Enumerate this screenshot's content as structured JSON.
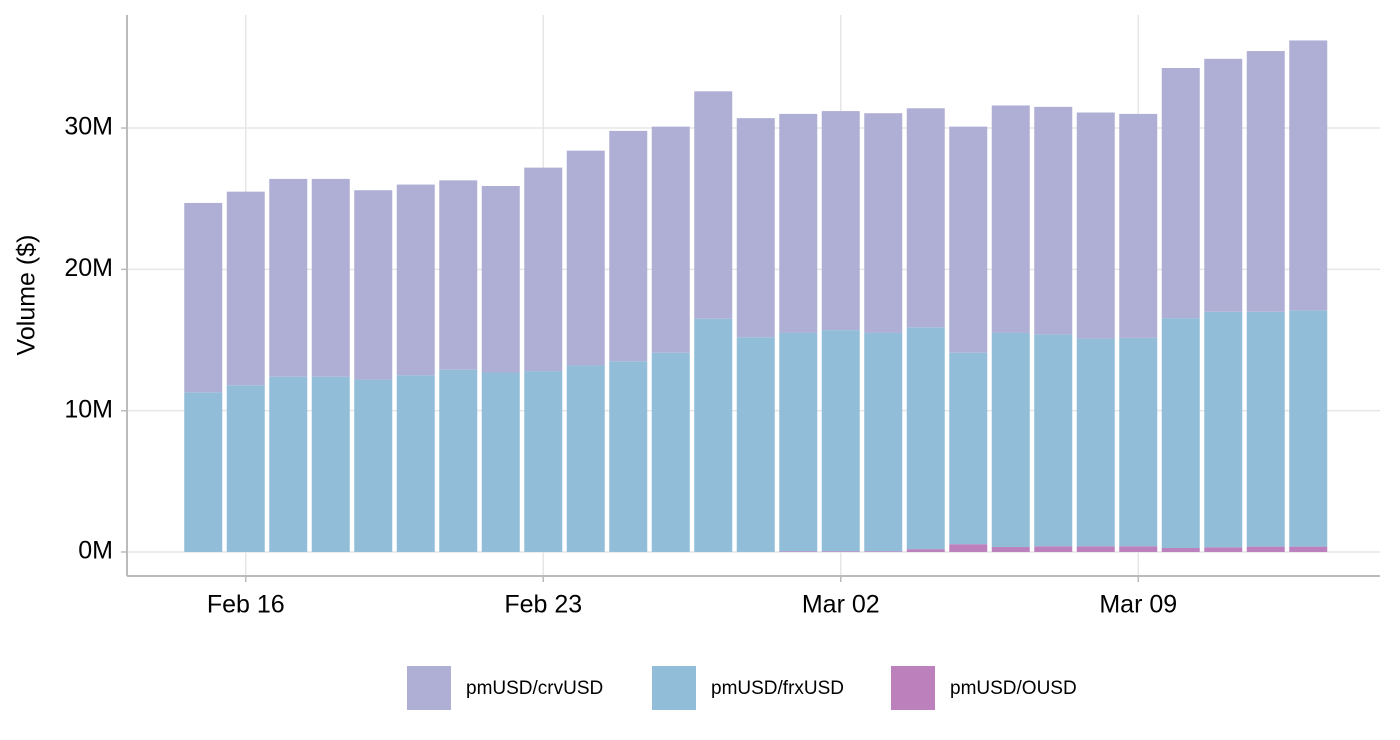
{
  "chart_data": {
    "type": "stacked_bar",
    "y_label": "Volume ($)",
    "categories": [
      null,
      "Feb 16",
      null,
      null,
      null,
      null,
      null,
      null,
      "Feb 23",
      null,
      null,
      null,
      null,
      null,
      null,
      "Mar 02",
      null,
      null,
      null,
      null,
      null,
      null,
      "Mar 09",
      null,
      null,
      null,
      null
    ],
    "series": [
      {
        "name": "pmUSD/crvUSD",
        "color": "#afafd6",
        "values": [
          13400000,
          13700000,
          14000000,
          14000000,
          13400000,
          13500000,
          13400000,
          13200000,
          14400000,
          15200000,
          16300000,
          16000000,
          16100000,
          15500000,
          15500000,
          15500000,
          15550000,
          15500000,
          16000000,
          16100000,
          16100000,
          16000000,
          15850000,
          17700000,
          17900000,
          18450000,
          19100000
        ]
      },
      {
        "name": "pmUSD/frxUSD",
        "color": "#91bdd9",
        "values": [
          11300000,
          11800000,
          12400000,
          12400000,
          12200000,
          12500000,
          12900000,
          12700000,
          12800000,
          13200000,
          13500000,
          14100000,
          16500000,
          15200000,
          15450000,
          15650000,
          15450000,
          15700000,
          13550000,
          15150000,
          15000000,
          14700000,
          14750000,
          16270000,
          16670000,
          16620000,
          16720000
        ]
      },
      {
        "name": "pmUSD/OUSD",
        "color": "#bc80bd",
        "values": [
          0,
          0,
          0,
          0,
          0,
          0,
          0,
          0,
          0,
          0,
          0,
          0,
          0,
          0,
          50000,
          50000,
          50000,
          200000,
          550000,
          350000,
          400000,
          400000,
          400000,
          280000,
          330000,
          380000,
          380000
        ]
      }
    ],
    "ylim": [
      -1700000,
      38000000
    ],
    "yticks": [
      {
        "value": 0,
        "label": "0M"
      },
      {
        "value": 10000000,
        "label": "10M"
      },
      {
        "value": 20000000,
        "label": "20M"
      },
      {
        "value": 30000000,
        "label": "30M"
      }
    ],
    "grid": true,
    "legend": "bottom"
  }
}
